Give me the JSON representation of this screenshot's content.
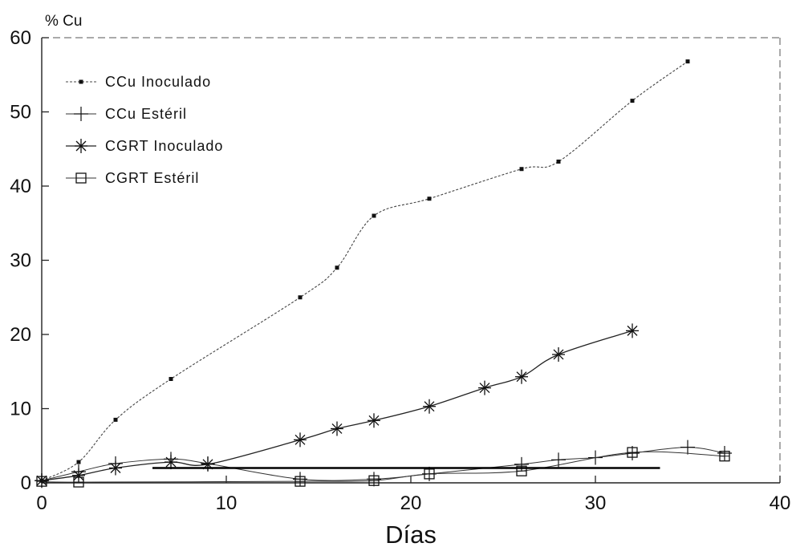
{
  "chart_data": {
    "type": "line",
    "ylabel": "% Cu",
    "xlabel": "Días",
    "xlim": [
      0,
      40
    ],
    "ylim": [
      0,
      60
    ],
    "x_ticks": [
      "0",
      "10",
      "20",
      "30",
      "40"
    ],
    "y_ticks": [
      "0",
      "10",
      "20",
      "30",
      "40",
      "50",
      "60"
    ],
    "grid": false,
    "legend_position": "top-left",
    "series": [
      {
        "name": "CCu Inoculado",
        "marker": "dot",
        "x": [
          0,
          2,
          4,
          7,
          14,
          16,
          18,
          21,
          26,
          28,
          32,
          35
        ],
        "y": [
          0.3,
          2.8,
          8.5,
          14,
          25,
          29,
          36,
          38.3,
          42.3,
          43.3,
          51.5,
          56.8
        ]
      },
      {
        "name": "CCu Estéril",
        "marker": "plus",
        "x": [
          0,
          2,
          4,
          7,
          9,
          14,
          18,
          21,
          26,
          28,
          30,
          32,
          35,
          37
        ],
        "y": [
          0.3,
          1.5,
          2.6,
          3.2,
          2.6,
          0.5,
          0.5,
          1.2,
          2.5,
          3.1,
          3.4,
          4.0,
          4.8,
          4.0
        ]
      },
      {
        "name": "CGRT Inoculado",
        "marker": "star",
        "x": [
          0,
          2,
          4,
          7,
          9,
          14,
          16,
          18,
          21,
          24,
          26,
          28,
          32
        ],
        "y": [
          0.3,
          1.0,
          2.0,
          2.8,
          2.5,
          5.8,
          7.3,
          8.4,
          10.3,
          12.8,
          14.3,
          17.3,
          20.5
        ]
      },
      {
        "name": "CGRT Estéril",
        "marker": "square",
        "x": [
          0,
          2,
          14,
          18,
          21,
          26,
          32,
          37
        ],
        "y": [
          0.2,
          0.1,
          0.2,
          0.3,
          1.2,
          1.6,
          4.1,
          3.6
        ]
      }
    ]
  }
}
